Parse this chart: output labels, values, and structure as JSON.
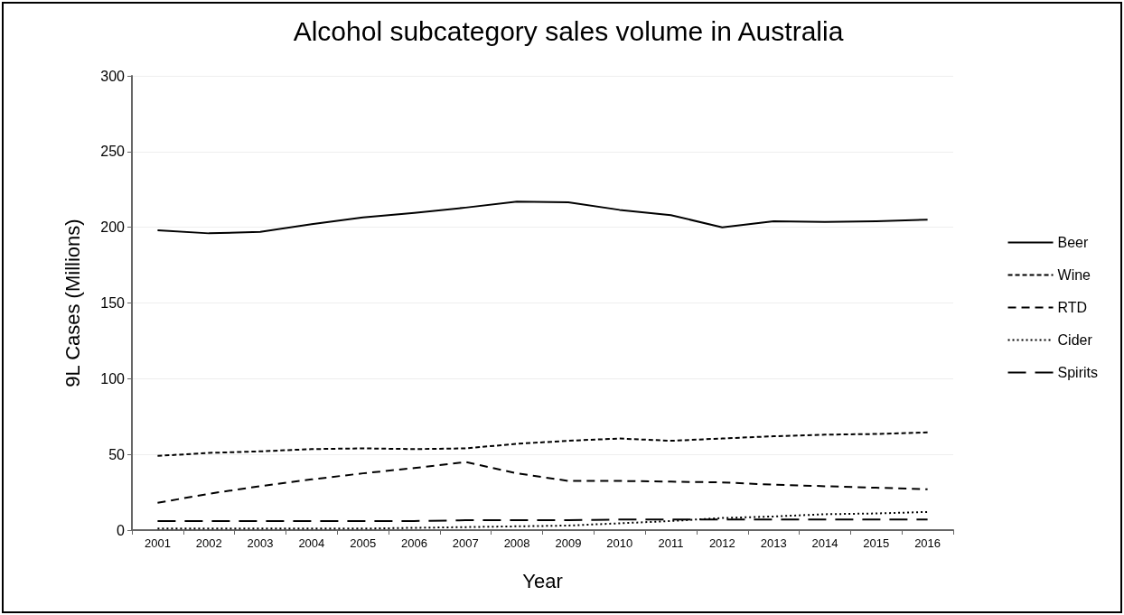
{
  "chart_data": {
    "type": "line",
    "title": "Alcohol subcategory sales volume in Australia",
    "xlabel": "Year",
    "ylabel": "9L Cases (Millions)",
    "categories": [
      "2001",
      "2002",
      "2003",
      "2004",
      "2005",
      "2006",
      "2007",
      "2008",
      "2009",
      "2010",
      "2011",
      "2012",
      "2013",
      "2014",
      "2015",
      "2016"
    ],
    "series": [
      {
        "name": "Beer",
        "color": "#000000",
        "line_style": "solid",
        "values": [
          198,
          196,
          197,
          202,
          206.5,
          209.5,
          213,
          217,
          216.5,
          211.5,
          208,
          200,
          204,
          203.5,
          204,
          205
        ]
      },
      {
        "name": "Wine",
        "color": "#000000",
        "line_style": "dashed",
        "values": [
          49,
          51,
          52,
          53.5,
          54,
          53.5,
          54,
          57,
          59,
          60.5,
          59,
          60.5,
          62,
          63,
          63.5,
          64.5
        ]
      },
      {
        "name": "RTD",
        "color": "#000000",
        "line_style": "dashed",
        "values": [
          18,
          24,
          29,
          33.5,
          37.5,
          41,
          45,
          37.5,
          32.5,
          32.5,
          32,
          31.5,
          30,
          29,
          28,
          27
        ]
      },
      {
        "name": "Cider",
        "color": "#000000",
        "line_style": "dotted",
        "values": [
          1,
          1,
          1,
          1,
          1,
          1.5,
          2,
          2.5,
          3,
          4.5,
          6,
          8,
          9,
          10.5,
          11,
          12
        ]
      },
      {
        "name": "Spirits",
        "color": "#000000",
        "line_style": "dashed",
        "values": [
          6,
          6,
          6,
          6,
          6,
          6,
          6.5,
          6.5,
          6.5,
          7,
          7,
          7,
          7,
          7,
          7,
          7
        ]
      }
    ],
    "ylim": [
      0,
      300
    ],
    "yticks": [
      0,
      50,
      100,
      150,
      200,
      250,
      300
    ],
    "grid": "y",
    "legend": "right",
    "marker": "none"
  }
}
